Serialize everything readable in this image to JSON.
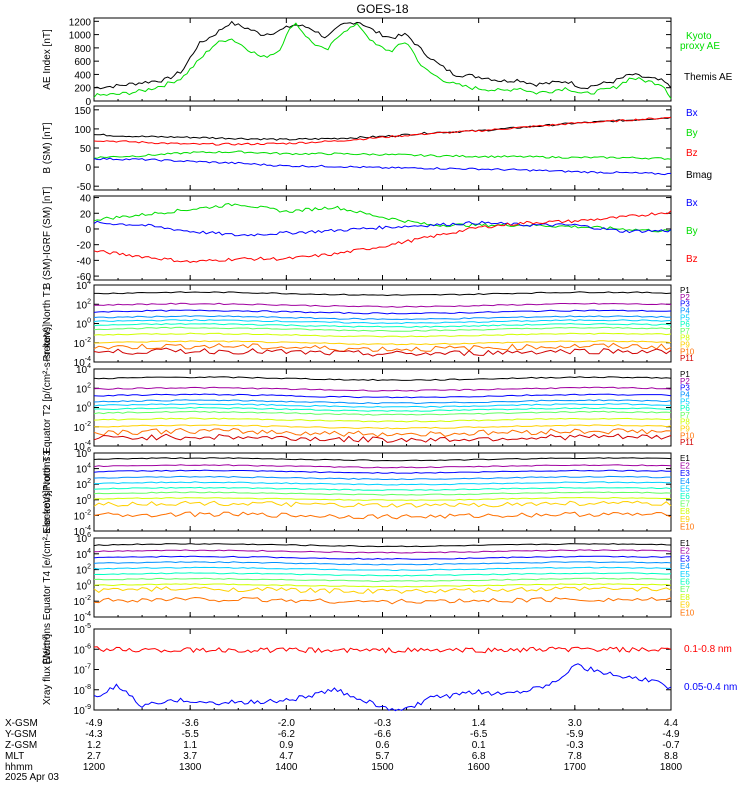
{
  "title": "GOES-18",
  "colors": {
    "black": "#000000",
    "red": "#ff0000",
    "green": "#00dd00",
    "blue": "#0000ff",
    "cyan": "#00ccff",
    "orange": "#ffaa00",
    "yellow": "#ffff00",
    "darkred": "#aa0000"
  },
  "channel_colors": [
    "#000000",
    "#a000a0",
    "#0000ff",
    "#0090ff",
    "#00d0ff",
    "#00ffc0",
    "#60ff60",
    "#d0ff00",
    "#ffd000",
    "#ff7000",
    "#d00000",
    "#a00000"
  ],
  "chart_data": [
    {
      "type": "line",
      "panel": "ae",
      "ylabel": "AE Index [nT]",
      "yticks": [
        "0",
        "200",
        "400",
        "600",
        "800",
        "1000",
        "1200"
      ],
      "ylim": [
        0,
        1250
      ],
      "legend": [
        {
          "text": "Kyoto",
          "color": "#00dd00"
        },
        {
          "text": "proxy AE",
          "color": "#00dd00"
        },
        {
          "text": "Themis AE",
          "color": "#000000"
        }
      ],
      "series": [
        {
          "name": "Themis AE",
          "color": "#000000",
          "x": [
            1200,
            1215,
            1230,
            1245,
            1255,
            1305,
            1315,
            1325,
            1335,
            1345,
            1355,
            1405,
            1415,
            1425,
            1435,
            1445,
            1455,
            1505,
            1515,
            1525,
            1535,
            1545,
            1555,
            1605,
            1615,
            1625,
            1635,
            1645,
            1655,
            1705,
            1715,
            1725,
            1735,
            1745,
            1755,
            1800
          ],
          "y": [
            200,
            230,
            280,
            320,
            450,
            850,
            1000,
            1180,
            1100,
            1000,
            1050,
            1150,
            1100,
            950,
            1150,
            1200,
            1050,
            950,
            1000,
            750,
            550,
            400,
            380,
            350,
            300,
            320,
            250,
            270,
            300,
            200,
            250,
            300,
            400,
            350,
            300,
            200
          ]
        },
        {
          "name": "Kyoto proxy AE",
          "color": "#00dd00",
          "x": [
            1200,
            1215,
            1230,
            1245,
            1255,
            1305,
            1315,
            1325,
            1335,
            1345,
            1355,
            1405,
            1415,
            1425,
            1435,
            1445,
            1455,
            1505,
            1515,
            1525,
            1535,
            1545,
            1555,
            1605,
            1615,
            1625,
            1635,
            1645,
            1655,
            1705,
            1715,
            1725,
            1735,
            1745,
            1755,
            1800
          ],
          "y": [
            80,
            100,
            150,
            250,
            350,
            600,
            850,
            950,
            800,
            650,
            750,
            1200,
            900,
            750,
            1050,
            1150,
            850,
            750,
            900,
            500,
            350,
            250,
            200,
            180,
            150,
            200,
            120,
            150,
            200,
            100,
            150,
            200,
            350,
            300,
            250,
            50
          ]
        }
      ]
    },
    {
      "type": "line",
      "panel": "bsm",
      "ylabel": "B (SM) [nT]",
      "yticks": [
        "-50",
        "0",
        "50",
        "100",
        "150"
      ],
      "ylim": [
        -60,
        160
      ],
      "legend": [
        {
          "text": "Bx",
          "color": "#0000ff"
        },
        {
          "text": "By",
          "color": "#00dd00"
        },
        {
          "text": "Bz",
          "color": "#ff0000"
        },
        {
          "text": "Bmag",
          "color": "#000000"
        }
      ],
      "series": [
        {
          "name": "Bmag",
          "color": "#000000",
          "x": [
            1200,
            1230,
            1300,
            1330,
            1400,
            1430,
            1500,
            1530,
            1600,
            1630,
            1700,
            1730,
            1800
          ],
          "y": [
            85,
            80,
            78,
            75,
            72,
            75,
            80,
            90,
            95,
            105,
            115,
            122,
            130
          ]
        },
        {
          "name": "Bz",
          "color": "#ff0000",
          "x": [
            1200,
            1230,
            1300,
            1330,
            1400,
            1430,
            1500,
            1530,
            1600,
            1630,
            1700,
            1730,
            1800
          ],
          "y": [
            70,
            65,
            60,
            60,
            62,
            68,
            78,
            88,
            95,
            105,
            115,
            122,
            130
          ]
        },
        {
          "name": "By",
          "color": "#00dd00",
          "x": [
            1200,
            1230,
            1300,
            1330,
            1400,
            1430,
            1500,
            1530,
            1600,
            1630,
            1700,
            1730,
            1800
          ],
          "y": [
            25,
            30,
            38,
            40,
            35,
            35,
            33,
            30,
            28,
            27,
            25,
            25,
            22
          ]
        },
        {
          "name": "Bx",
          "color": "#0000ff",
          "x": [
            1200,
            1230,
            1300,
            1330,
            1400,
            1430,
            1500,
            1530,
            1600,
            1630,
            1700,
            1730,
            1800
          ],
          "y": [
            22,
            20,
            15,
            10,
            3,
            2,
            -2,
            -3,
            -5,
            -8,
            -12,
            -15,
            -18
          ]
        }
      ]
    },
    {
      "type": "line",
      "panel": "bigrf",
      "ylabel": "B (SM)-IGRF (SM) [nT]",
      "yticks": [
        "-60",
        "-40",
        "-20",
        "0",
        "20",
        "40"
      ],
      "ylim": [
        -65,
        42
      ],
      "legend": [
        {
          "text": "Bx",
          "color": "#0000ff"
        },
        {
          "text": "By",
          "color": "#00dd00"
        },
        {
          "text": "Bz",
          "color": "#ff0000"
        }
      ],
      "series": [
        {
          "name": "By",
          "color": "#00dd00",
          "x": [
            1200,
            1230,
            1300,
            1330,
            1400,
            1430,
            1500,
            1530,
            1600,
            1630,
            1700,
            1730,
            1800
          ],
          "y": [
            12,
            18,
            25,
            32,
            22,
            28,
            15,
            5,
            5,
            5,
            3,
            0,
            -3
          ]
        },
        {
          "name": "Bx",
          "color": "#0000ff",
          "x": [
            1200,
            1230,
            1300,
            1330,
            1400,
            1430,
            1500,
            1530,
            1600,
            1630,
            1700,
            1730,
            1800
          ],
          "y": [
            8,
            5,
            -3,
            -8,
            -5,
            -2,
            2,
            5,
            8,
            5,
            5,
            -3,
            -2
          ]
        },
        {
          "name": "Bz",
          "color": "#ff0000",
          "x": [
            1200,
            1230,
            1300,
            1330,
            1400,
            1430,
            1500,
            1530,
            1600,
            1630,
            1700,
            1730,
            1800
          ],
          "y": [
            -28,
            -35,
            -42,
            -38,
            -38,
            -32,
            -22,
            -10,
            2,
            8,
            10,
            15,
            22
          ]
        }
      ]
    },
    {
      "type": "line",
      "panel": "pt1",
      "log": true,
      "ylabel": "Protons North T1",
      "ytick_exps": [
        -4,
        -2,
        0,
        2,
        4
      ],
      "ylim": [
        -4,
        4
      ],
      "channels": [
        "P1",
        "P2",
        "P3",
        "P4",
        "P5",
        "P6",
        "P7",
        "P8",
        "P9",
        "P10",
        "P11"
      ],
      "levels": [
        3.1,
        1.9,
        1.2,
        0.6,
        0.2,
        -0.2,
        -0.6,
        -1.2,
        -2.0,
        -2.5,
        -3.0
      ]
    },
    {
      "type": "line",
      "panel": "pt2",
      "log": true,
      "ylabel": "Protons Equator T2 [p/(cm²-s-sr-keV)]",
      "ytick_exps": [
        -4,
        -2,
        0,
        2,
        4
      ],
      "ylim": [
        -4,
        4
      ],
      "channels": [
        "P1",
        "P2",
        "P3",
        "P4",
        "P5",
        "P6",
        "P7",
        "P8",
        "P9",
        "P10",
        "P11"
      ],
      "levels": [
        3.0,
        1.9,
        1.2,
        0.6,
        0.2,
        -0.2,
        -0.6,
        -1.3,
        -2.0,
        -2.6,
        -3.2
      ]
    },
    {
      "type": "line",
      "panel": "et3",
      "log": true,
      "ylabel": "Electrons North T3",
      "ytick_exps": [
        -4,
        -2,
        0,
        2,
        4,
        6
      ],
      "ylim": [
        -4,
        6
      ],
      "channels": [
        "E1",
        "E2",
        "E3",
        "E4",
        "E5",
        "E6",
        "E7",
        "E8",
        "E9",
        "E10"
      ],
      "levels": [
        5.2,
        4.3,
        3.6,
        2.8,
        2.1,
        1.4,
        0.8,
        0.1,
        -0.6,
        -2.0
      ]
    },
    {
      "type": "line",
      "panel": "et4",
      "log": true,
      "ylabel": "Electrons Equator T4 [e/(cm²-s-sr-keV)]",
      "ytick_exps": [
        -4,
        -2,
        0,
        2,
        4,
        6
      ],
      "ylim": [
        -4,
        6
      ],
      "channels": [
        "E1",
        "E2",
        "E3",
        "E4",
        "E5",
        "E6",
        "E7",
        "E8",
        "E9",
        "E10"
      ],
      "levels": [
        5.1,
        4.3,
        3.5,
        2.8,
        2.1,
        1.4,
        0.7,
        0.0,
        -0.6,
        -1.9
      ]
    },
    {
      "type": "line",
      "panel": "xray",
      "log": true,
      "ylabel": "Xray flux [W/m²]",
      "ytick_exps": [
        -9,
        -8,
        -7,
        -6,
        -5
      ],
      "ylim": [
        -9,
        -5
      ],
      "legend": [
        {
          "text": "0.1-0.8 nm",
          "color": "#ff0000"
        },
        {
          "text": "0.05-0.4 nm",
          "color": "#0000ff"
        }
      ],
      "series": [
        {
          "name": "0.1-0.8 nm",
          "color": "#ff0000",
          "x": [
            1200,
            1300,
            1400,
            1500,
            1600,
            1700,
            1800
          ],
          "y": [
            -6.0,
            -6.05,
            -6.05,
            -6.05,
            -6.05,
            -6.0,
            -6.05
          ]
        },
        {
          "name": "0.05-0.4 nm",
          "color": "#0000ff",
          "x": [
            1200,
            1215,
            1230,
            1245,
            1300,
            1315,
            1330,
            1345,
            1400,
            1415,
            1430,
            1445,
            1500,
            1515,
            1530,
            1545,
            1600,
            1615,
            1630,
            1645,
            1700,
            1715,
            1730,
            1745,
            1800
          ],
          "y": [
            -8.4,
            -7.8,
            -8.8,
            -8.6,
            -8.5,
            -8.7,
            -8.6,
            -8.6,
            -8.5,
            -8.3,
            -8.0,
            -8.4,
            -8.9,
            -9.0,
            -8.4,
            -8.3,
            -8.1,
            -8.2,
            -8.0,
            -7.7,
            -6.8,
            -7.1,
            -7.4,
            -7.5,
            -7.9
          ]
        }
      ]
    }
  ],
  "xaxis": {
    "ticks_hhmm": [
      "1200",
      "1300",
      "1400",
      "1500",
      "1600",
      "1700",
      "1800"
    ],
    "rows": [
      {
        "label": "X-GSM",
        "values": [
          "-4.9",
          "-3.6",
          "-2.0",
          "-0.3",
          "1.4",
          "3.0",
          "4.4"
        ]
      },
      {
        "label": "Y-GSM",
        "values": [
          "-4.3",
          "-5.5",
          "-6.2",
          "-6.6",
          "-6.5",
          "-5.9",
          "-4.9"
        ]
      },
      {
        "label": "Z-GSM",
        "values": [
          "1.2",
          "1.1",
          "0.9",
          "0.6",
          "0.1",
          "-0.3",
          "-0.7"
        ]
      },
      {
        "label": "MLT",
        "values": [
          "2.7",
          "3.7",
          "4.7",
          "5.7",
          "6.8",
          "7.8",
          "8.8"
        ]
      },
      {
        "label": "hhmm",
        "values": [
          "1200",
          "1300",
          "1400",
          "1500",
          "1600",
          "1700",
          "1800"
        ]
      }
    ],
    "date": "2025 Apr 03"
  }
}
